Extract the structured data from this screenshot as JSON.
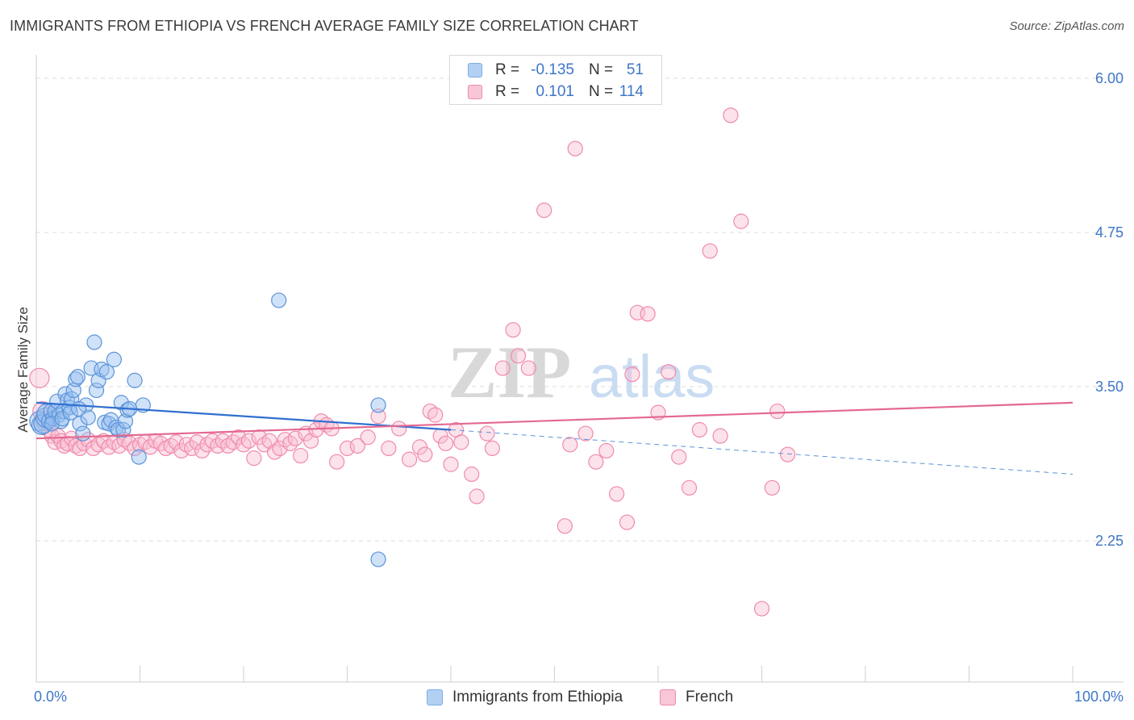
{
  "title": "IMMIGRANTS FROM ETHIOPIA VS FRENCH AVERAGE FAMILY SIZE CORRELATION CHART",
  "source": "Source: ZipAtlas.com",
  "watermark": {
    "zip": "ZIP",
    "atlas": "atlas"
  },
  "legend": {
    "rows": [
      {
        "r_label": "R =",
        "r_value": "-0.135",
        "n_label": "N =",
        "n_value": "51",
        "color": "#7aaee8",
        "fill": "#b3d0f3"
      },
      {
        "r_label": "R =",
        "r_value": "0.101",
        "n_label": "N =",
        "n_value": "114",
        "color": "#f08aab",
        "fill": "#f8c6d6"
      }
    ]
  },
  "bottom_legend": [
    "Immigrants from Ethiopia",
    "French"
  ],
  "chart_data": {
    "type": "scatter",
    "title": "IMMIGRANTS FROM ETHIOPIA VS FRENCH AVERAGE FAMILY SIZE CORRELATION CHART",
    "xlabel": "",
    "ylabel": "Average Family Size",
    "xlim": [
      0,
      100
    ],
    "ylim": [
      1.0,
      6.0
    ],
    "x_tick_labels": [
      "0.0%",
      "100.0%"
    ],
    "y_ticks": [
      2.25,
      3.5,
      4.75,
      6.0
    ],
    "y_tick_labels": [
      "2.25",
      "3.50",
      "4.75",
      "6.00"
    ],
    "grid": true,
    "series": [
      {
        "name": "Immigrants from Ethiopia",
        "color": "#5b93d9",
        "fill": "rgba(150,190,240,0.45)",
        "trend": {
          "x0": 0,
          "y0": 3.37,
          "x1": 40,
          "y1": 3.15,
          "dash_to_x": 100,
          "dash_to_y": 2.79
        },
        "points": [
          [
            0.3,
            3.22
          ],
          [
            0.5,
            3.19
          ],
          [
            0.7,
            3.2
          ],
          [
            0.9,
            3.25
          ],
          [
            1.0,
            3.28
          ],
          [
            1.2,
            3.22
          ],
          [
            1.4,
            3.3
          ],
          [
            1.6,
            3.24
          ],
          [
            1.8,
            3.3
          ],
          [
            2.0,
            3.38
          ],
          [
            2.2,
            3.27
          ],
          [
            2.4,
            3.22
          ],
          [
            2.6,
            3.3
          ],
          [
            2.8,
            3.44
          ],
          [
            3.0,
            3.39
          ],
          [
            3.2,
            3.33
          ],
          [
            3.4,
            3.4
          ],
          [
            3.6,
            3.47
          ],
          [
            3.8,
            3.56
          ],
          [
            4.0,
            3.58
          ],
          [
            4.2,
            3.2
          ],
          [
            4.5,
            3.12
          ],
          [
            4.8,
            3.35
          ],
          [
            5.0,
            3.25
          ],
          [
            5.3,
            3.65
          ],
          [
            5.6,
            3.86
          ],
          [
            5.8,
            3.47
          ],
          [
            6.0,
            3.55
          ],
          [
            6.3,
            3.64
          ],
          [
            6.6,
            3.21
          ],
          [
            6.8,
            3.62
          ],
          [
            7.0,
            3.2
          ],
          [
            7.2,
            3.23
          ],
          [
            7.5,
            3.72
          ],
          [
            7.7,
            3.17
          ],
          [
            7.9,
            3.15
          ],
          [
            8.2,
            3.37
          ],
          [
            8.4,
            3.15
          ],
          [
            8.6,
            3.22
          ],
          [
            8.8,
            3.31
          ],
          [
            9.0,
            3.32
          ],
          [
            9.5,
            3.55
          ],
          [
            9.9,
            2.93
          ],
          [
            10.3,
            3.35
          ],
          [
            23.4,
            4.2
          ],
          [
            33.0,
            2.1
          ],
          [
            33.0,
            3.35
          ],
          [
            1.5,
            3.2
          ],
          [
            2.5,
            3.24
          ],
          [
            3.3,
            3.29
          ],
          [
            4.1,
            3.32
          ]
        ]
      },
      {
        "name": "French",
        "color": "#f08aab",
        "fill": "rgba(248,190,210,0.45)",
        "trend": {
          "x0": 0,
          "y0": 3.08,
          "x1": 100,
          "y1": 3.37
        },
        "points": [
          [
            0.3,
            3.57
          ],
          [
            0.6,
            3.3
          ],
          [
            0.9,
            3.22
          ],
          [
            1.2,
            3.15
          ],
          [
            1.5,
            3.1
          ],
          [
            1.8,
            3.05
          ],
          [
            2.1,
            3.1
          ],
          [
            2.4,
            3.06
          ],
          [
            2.7,
            3.02
          ],
          [
            3.0,
            3.04
          ],
          [
            3.4,
            3.08
          ],
          [
            3.8,
            3.02
          ],
          [
            4.2,
            3.0
          ],
          [
            4.6,
            3.04
          ],
          [
            5.0,
            3.07
          ],
          [
            5.5,
            3.0
          ],
          [
            6.0,
            3.03
          ],
          [
            6.5,
            3.06
          ],
          [
            7.0,
            3.01
          ],
          [
            7.5,
            3.05
          ],
          [
            8.0,
            3.02
          ],
          [
            8.5,
            3.07
          ],
          [
            9.0,
            3.04
          ],
          [
            9.5,
            3.0
          ],
          [
            10.0,
            3.03
          ],
          [
            10.5,
            3.05
          ],
          [
            11.0,
            3.01
          ],
          [
            11.5,
            3.06
          ],
          [
            12.0,
            3.04
          ],
          [
            12.5,
            3.0
          ],
          [
            13.0,
            3.02
          ],
          [
            13.5,
            3.05
          ],
          [
            14.0,
            2.98
          ],
          [
            14.5,
            3.03
          ],
          [
            15.0,
            3.0
          ],
          [
            15.5,
            3.05
          ],
          [
            16.0,
            2.98
          ],
          [
            16.5,
            3.03
          ],
          [
            17.0,
            3.06
          ],
          [
            17.5,
            3.02
          ],
          [
            18.0,
            3.06
          ],
          [
            18.5,
            3.02
          ],
          [
            19.0,
            3.05
          ],
          [
            19.5,
            3.09
          ],
          [
            20.0,
            3.03
          ],
          [
            20.5,
            3.06
          ],
          [
            21.0,
            2.92
          ],
          [
            21.5,
            3.09
          ],
          [
            22.0,
            3.03
          ],
          [
            22.5,
            3.06
          ],
          [
            23.0,
            2.97
          ],
          [
            23.5,
            3.0
          ],
          [
            24.0,
            3.07
          ],
          [
            24.5,
            3.04
          ],
          [
            25.0,
            3.08
          ],
          [
            25.5,
            2.94
          ],
          [
            26.0,
            3.12
          ],
          [
            26.5,
            3.06
          ],
          [
            27.0,
            3.15
          ],
          [
            27.5,
            3.22
          ],
          [
            28.0,
            3.19
          ],
          [
            28.5,
            3.16
          ],
          [
            29.0,
            2.89
          ],
          [
            30.0,
            3.0
          ],
          [
            31.0,
            3.02
          ],
          [
            32.0,
            3.09
          ],
          [
            33.0,
            3.26
          ],
          [
            34.0,
            3.0
          ],
          [
            35.0,
            3.16
          ],
          [
            36.0,
            2.91
          ],
          [
            37.0,
            3.01
          ],
          [
            37.5,
            2.95
          ],
          [
            38.0,
            3.3
          ],
          [
            38.5,
            3.27
          ],
          [
            39.0,
            3.1
          ],
          [
            39.5,
            3.04
          ],
          [
            40.0,
            2.87
          ],
          [
            40.5,
            3.15
          ],
          [
            41.0,
            3.05
          ],
          [
            42.0,
            2.79
          ],
          [
            42.5,
            2.61
          ],
          [
            43.5,
            3.12
          ],
          [
            44.0,
            3.0
          ],
          [
            45.0,
            3.65
          ],
          [
            46.0,
            3.96
          ],
          [
            46.5,
            3.75
          ],
          [
            47.5,
            3.65
          ],
          [
            49.0,
            4.93
          ],
          [
            51.0,
            2.37
          ],
          [
            51.5,
            3.03
          ],
          [
            52.0,
            5.43
          ],
          [
            53.0,
            3.12
          ],
          [
            54.0,
            2.89
          ],
          [
            55.0,
            2.98
          ],
          [
            56.0,
            2.63
          ],
          [
            57.0,
            2.4
          ],
          [
            57.5,
            3.6
          ],
          [
            58.0,
            4.1
          ],
          [
            59.0,
            4.09
          ],
          [
            60.0,
            3.29
          ],
          [
            61.0,
            3.62
          ],
          [
            62.0,
            2.93
          ],
          [
            63.0,
            2.68
          ],
          [
            64.0,
            3.15
          ],
          [
            65.0,
            4.6
          ],
          [
            66.0,
            3.1
          ],
          [
            67.0,
            5.7
          ],
          [
            68.0,
            4.84
          ],
          [
            70.0,
            1.7
          ],
          [
            71.0,
            2.68
          ],
          [
            71.5,
            3.3
          ],
          [
            72.5,
            2.95
          ]
        ]
      }
    ]
  }
}
